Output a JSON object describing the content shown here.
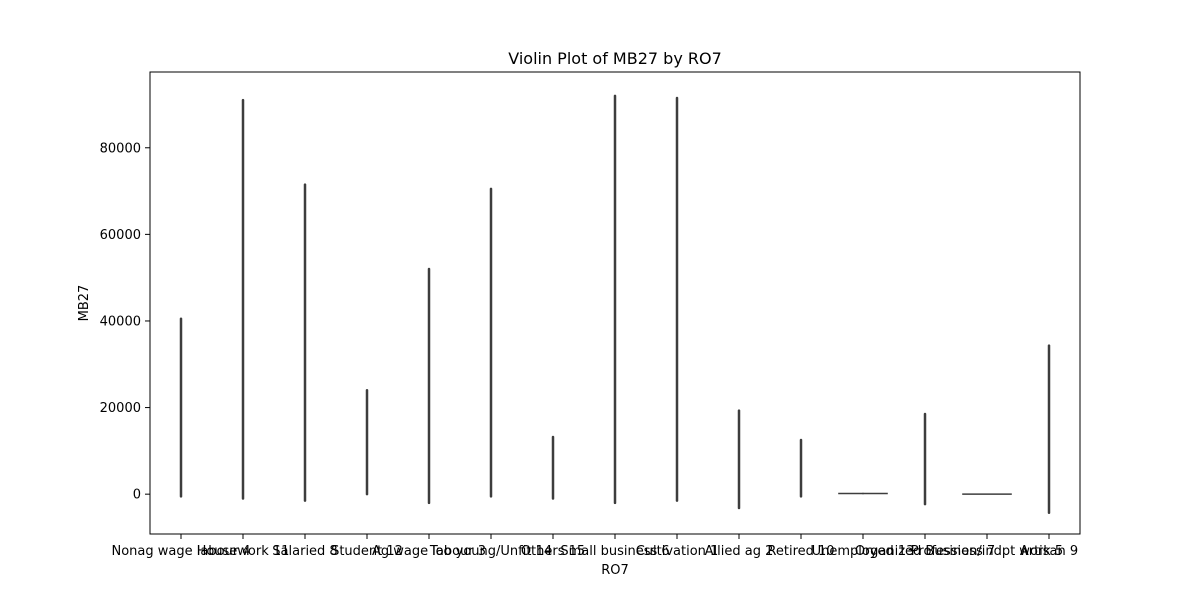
{
  "chart_data": {
    "type": "violin",
    "title": "Violin Plot of MB27 by RO7",
    "xlabel": "RO7",
    "ylabel": "MB27",
    "categories": [
      "Nonag wage labour 4",
      "Housework 11",
      "Salaried 8",
      "Student 12",
      "Ag wage labour 3",
      "Too young/Unfit 14",
      "Others 15",
      "Small business 6",
      "Cultivation 1",
      "Allied ag 2",
      "Retired 10",
      "Unemployed 13",
      "Organized Business 7",
      "Profession/indpt work 5",
      "Artisan 9"
    ],
    "x_tick_labels": [
      "Nonag wage labour 4",
      "Housework 11",
      "Salaried 8",
      "Student 12",
      "Ag wage labour 3",
      "Too young/Unfit 14",
      "Others 15",
      "Small business 6",
      "Cultivation 1",
      "Allied ag 2",
      "Retired 10",
      "Unemployed 13",
      "Organized Business 7",
      "Profession/indpt work 5",
      "Artisan 9"
    ],
    "violins": [
      {
        "min": -500,
        "max": 40500,
        "hw": 0
      },
      {
        "min": -1000,
        "max": 91000,
        "hw": 0
      },
      {
        "min": -1500,
        "max": 71500,
        "hw": 0
      },
      {
        "min": 0,
        "max": 24000,
        "hw": 0
      },
      {
        "min": -2000,
        "max": 52000,
        "hw": 0
      },
      {
        "min": -500,
        "max": 70500,
        "hw": 0
      },
      {
        "min": -1000,
        "max": 13200,
        "hw": 0
      },
      {
        "min": -2000,
        "max": 92000,
        "hw": 0
      },
      {
        "min": -1500,
        "max": 91500,
        "hw": 0
      },
      {
        "min": -3200,
        "max": 19300,
        "hw": 0
      },
      {
        "min": -500,
        "max": 12500,
        "hw": 0
      },
      {
        "min": 0,
        "max": 300,
        "hw": 0.4
      },
      {
        "min": -2300,
        "max": 18500,
        "hw": 0
      },
      {
        "min": 0,
        "max": 0,
        "hw": 0.4
      },
      {
        "min": -4300,
        "max": 34300,
        "hw": 0
      }
    ],
    "ylim": [
      -9200,
      97500
    ],
    "yticks": [
      0,
      20000,
      40000,
      60000,
      80000
    ],
    "ytick_labels": [
      "0",
      "20000",
      "40000",
      "60000",
      "80000"
    ],
    "grid": false,
    "colors": {
      "violin": "#3d3d3d",
      "axis": "#000000",
      "background": "#ffffff"
    }
  }
}
